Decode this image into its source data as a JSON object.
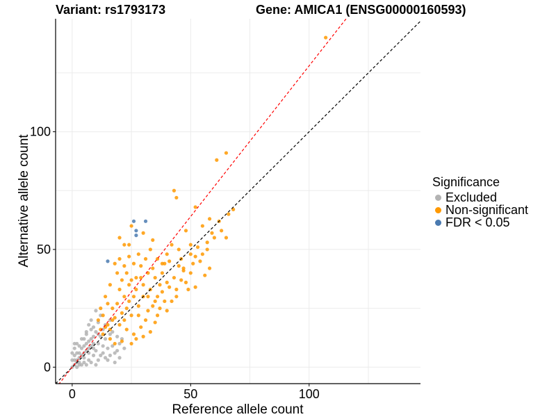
{
  "header": {
    "variant_title": "Variant: rs1793173",
    "gene_title": "Gene: AMICA1 (ENSG00000160593)"
  },
  "chart_data": {
    "type": "scatter",
    "xlabel": "Reference allele count",
    "ylabel": "Alternative allele count",
    "xlim": [
      -7,
      147
    ],
    "ylim": [
      -7,
      148
    ],
    "x_ticks": [
      0,
      50,
      100
    ],
    "y_ticks": [
      0,
      50,
      100
    ],
    "grid": true,
    "legend_position": "right",
    "legend": {
      "title": "Significance",
      "entries": [
        {
          "label": "Excluded",
          "color": "#b3b3b3"
        },
        {
          "label": "Non-significant",
          "color": "#ff9900"
        },
        {
          "label": "FDR < 0.05",
          "color": "#4a7ab0"
        }
      ]
    },
    "reference_lines": [
      {
        "name": "identity",
        "slope": 1.0,
        "intercept": 0,
        "color": "#000000",
        "style": "dashed"
      },
      {
        "name": "fit",
        "slope": 1.28,
        "intercept": 0,
        "color": "#ff0000",
        "style": "dashed"
      }
    ],
    "series": [
      {
        "name": "FDR < 0.05",
        "color": "#4a7ab0",
        "points": [
          [
            15,
            45
          ],
          [
            26,
            62
          ],
          [
            27,
            58
          ],
          [
            27,
            56
          ],
          [
            31,
            62
          ]
        ]
      },
      {
        "name": "Non-significant",
        "color": "#ff9900",
        "points": [
          [
            107,
            140
          ],
          [
            65,
            91
          ],
          [
            61,
            88
          ],
          [
            43,
            75
          ],
          [
            44,
            72
          ],
          [
            52,
            68
          ],
          [
            68,
            67
          ],
          [
            66,
            65
          ],
          [
            58,
            63
          ],
          [
            62,
            62
          ],
          [
            55,
            60
          ],
          [
            48,
            58
          ],
          [
            60,
            55
          ],
          [
            65,
            55
          ],
          [
            50,
            52
          ],
          [
            57,
            50
          ],
          [
            52,
            47
          ],
          [
            45,
            50
          ],
          [
            40,
            48
          ],
          [
            54,
            45
          ],
          [
            58,
            42
          ],
          [
            56,
            39
          ],
          [
            47,
            41
          ],
          [
            41,
            45
          ],
          [
            38,
            44
          ],
          [
            36,
            46
          ],
          [
            42,
            52
          ],
          [
            46,
            46
          ],
          [
            50,
            40
          ],
          [
            33,
            50
          ],
          [
            34,
            54
          ],
          [
            30,
            57
          ],
          [
            25,
            60
          ],
          [
            28,
            48
          ],
          [
            22,
            52
          ],
          [
            24,
            47
          ],
          [
            20,
            55
          ],
          [
            18,
            44
          ],
          [
            35,
            38
          ],
          [
            38,
            32
          ],
          [
            44,
            30
          ],
          [
            49,
            33
          ],
          [
            40,
            36
          ],
          [
            32,
            40
          ],
          [
            29,
            43
          ],
          [
            26,
            44
          ],
          [
            23,
            40
          ],
          [
            21,
            37
          ],
          [
            19,
            40
          ],
          [
            16,
            35
          ],
          [
            14,
            30
          ],
          [
            12,
            25
          ],
          [
            13,
            22
          ],
          [
            11,
            20
          ],
          [
            15,
            18
          ],
          [
            17,
            20
          ],
          [
            20,
            18
          ],
          [
            23,
            16
          ],
          [
            26,
            14
          ],
          [
            25,
            22
          ],
          [
            28,
            26
          ],
          [
            30,
            30
          ],
          [
            33,
            33
          ],
          [
            35,
            28
          ],
          [
            37,
            25
          ],
          [
            40,
            24
          ],
          [
            42,
            28
          ],
          [
            44,
            33
          ],
          [
            46,
            37
          ],
          [
            48,
            36
          ],
          [
            52,
            34
          ],
          [
            31,
            20
          ],
          [
            29,
            17
          ],
          [
            27,
            12
          ],
          [
            33,
            15
          ],
          [
            35,
            19
          ],
          [
            24,
            28
          ],
          [
            22,
            30
          ],
          [
            19,
            27
          ],
          [
            17,
            25
          ],
          [
            15,
            27
          ],
          [
            13,
            14
          ],
          [
            16,
            12
          ],
          [
            18,
            10
          ],
          [
            21,
            11
          ],
          [
            25,
            10
          ],
          [
            30,
            13
          ],
          [
            36,
            22
          ],
          [
            39,
            28
          ],
          [
            43,
            38
          ],
          [
            47,
            42
          ],
          [
            51,
            44
          ],
          [
            55,
            48
          ],
          [
            57,
            53
          ],
          [
            63,
            58
          ],
          [
            20,
            33
          ],
          [
            24,
            35
          ],
          [
            27,
            38
          ],
          [
            30,
            35
          ],
          [
            32,
            30
          ],
          [
            34,
            26
          ],
          [
            38,
            40
          ],
          [
            41,
            34
          ],
          [
            26,
            30
          ],
          [
            23,
            25
          ],
          [
            21,
            23
          ],
          [
            18,
            21
          ],
          [
            16,
            16
          ],
          [
            14,
            17
          ],
          [
            12,
            16
          ],
          [
            22,
            20
          ],
          [
            28,
            22
          ],
          [
            32,
            24
          ],
          [
            36,
            30
          ],
          [
            39,
            44
          ],
          [
            34,
            42
          ],
          [
            31,
            46
          ],
          [
            29,
            38
          ],
          [
            27,
            33
          ],
          [
            25,
            37
          ],
          [
            22,
            43
          ],
          [
            20,
            46
          ],
          [
            24,
            52
          ],
          [
            37,
            35
          ],
          [
            45,
            43
          ],
          [
            50,
            48
          ],
          [
            53,
            51
          ],
          [
            59,
            57
          ]
        ]
      },
      {
        "name": "Excluded",
        "color": "#b3b3b3",
        "points": [
          [
            0,
            0
          ],
          [
            1,
            1
          ],
          [
            2,
            3
          ],
          [
            3,
            2
          ],
          [
            4,
            5
          ],
          [
            5,
            4
          ],
          [
            6,
            7
          ],
          [
            7,
            6
          ],
          [
            8,
            9
          ],
          [
            9,
            8
          ],
          [
            1,
            3
          ],
          [
            3,
            1
          ],
          [
            2,
            6
          ],
          [
            5,
            2
          ],
          [
            4,
            8
          ],
          [
            7,
            3
          ],
          [
            6,
            10
          ],
          [
            9,
            5
          ],
          [
            8,
            12
          ],
          [
            10,
            7
          ],
          [
            11,
            10
          ],
          [
            12,
            13
          ],
          [
            10,
            15
          ],
          [
            13,
            9
          ],
          [
            14,
            12
          ],
          [
            9,
            17
          ],
          [
            11,
            19
          ],
          [
            12,
            22
          ],
          [
            8,
            20
          ],
          [
            6,
            15
          ],
          [
            5,
            12
          ],
          [
            3,
            9
          ],
          [
            2,
            10
          ],
          [
            7,
            18
          ],
          [
            10,
            24
          ],
          [
            13,
            6
          ],
          [
            15,
            8
          ],
          [
            17,
            9
          ],
          [
            16,
            5
          ],
          [
            19,
            7
          ],
          [
            14,
            4
          ],
          [
            11,
            3
          ],
          [
            8,
            2
          ],
          [
            4,
            1
          ],
          [
            1,
            5
          ],
          [
            0,
            3
          ],
          [
            2,
            0
          ],
          [
            6,
            1
          ],
          [
            10,
            1
          ],
          [
            12,
            5
          ],
          [
            15,
            3
          ],
          [
            18,
            6
          ],
          [
            20,
            10
          ],
          [
            16,
            14
          ],
          [
            14,
            18
          ],
          [
            9,
            13
          ],
          [
            7,
            11
          ],
          [
            5,
            9
          ],
          [
            3,
            6
          ],
          [
            1,
            8
          ],
          [
            4,
            12
          ],
          [
            6,
            14
          ],
          [
            8,
            16
          ],
          [
            13,
            16
          ],
          [
            16,
            20
          ],
          [
            11,
            14
          ],
          [
            9,
            10
          ],
          [
            7,
            8
          ],
          [
            5,
            6
          ],
          [
            3,
            4
          ],
          [
            2,
            2
          ],
          [
            0,
            6
          ],
          [
            1,
            10
          ],
          [
            17,
            15
          ],
          [
            19,
            13
          ],
          [
            21,
            12
          ],
          [
            22,
            8
          ],
          [
            20,
            4
          ],
          [
            18,
            2
          ]
        ]
      }
    ]
  }
}
